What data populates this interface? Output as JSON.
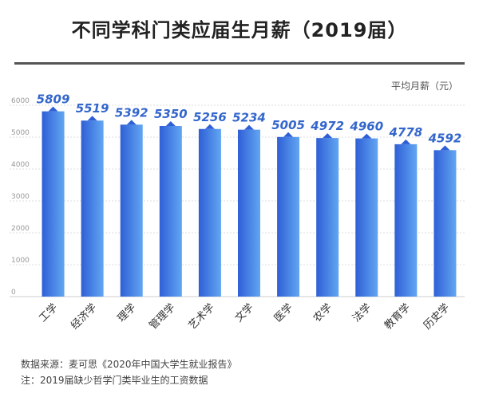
{
  "title": "不同学科门类应届生月薪（2019届）",
  "footnotes": {
    "source": "数据来源：麦可思《2020年中国大学生就业报告》",
    "note": "注：2019届缺少哲学门类毕业生的工资数据"
  },
  "colors": {
    "bar_top": "#2f5fd6",
    "bar_bottom": "#62a6f2",
    "value_label": "#3366cc",
    "axis_text": "#999999",
    "grid": "#dddddd"
  },
  "chart_data": {
    "type": "bar",
    "title": "不同学科门类应届生月薪（2019届）",
    "ylabel": "平均月薪（元）",
    "xlabel": "",
    "ylim": [
      0,
      6000
    ],
    "yticks": [
      0,
      1000,
      2000,
      3000,
      4000,
      5000,
      6000
    ],
    "grid": true,
    "categories": [
      "工学",
      "经济学",
      "理学",
      "管理学",
      "艺术学",
      "文学",
      "医学",
      "农学",
      "法学",
      "教育学",
      "历史学"
    ],
    "values": [
      5809,
      5519,
      5392,
      5350,
      5256,
      5234,
      5005,
      4972,
      4960,
      4778,
      4592
    ]
  }
}
